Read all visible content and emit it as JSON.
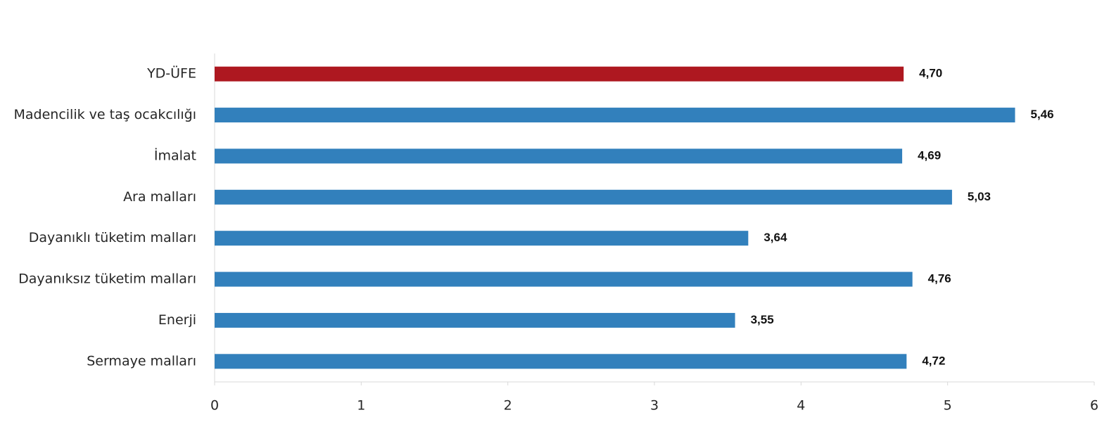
{
  "chart_data": {
    "type": "bar",
    "orientation": "horizontal",
    "categories": [
      "YD-ÜFE",
      "Madencilik ve taş ocakcılığı",
      "İmalat",
      "Ara malları",
      "Dayanıklı tüketim malları",
      "Dayanıksız tüketim malları",
      "Enerji",
      "Sermaye malları"
    ],
    "values": [
      4.7,
      5.46,
      4.69,
      5.03,
      3.64,
      4.76,
      3.55,
      4.72
    ],
    "value_labels": [
      "4,70",
      "5,46",
      "4,69",
      "5,03",
      "3,64",
      "4,76",
      "3,55",
      "4,72"
    ],
    "colors": [
      "#ae1820",
      "#3280bc",
      "#3280bc",
      "#3280bc",
      "#3280bc",
      "#3280bc",
      "#3280bc",
      "#3280bc"
    ],
    "xlim": [
      0,
      6
    ],
    "xticks": [
      0,
      1,
      2,
      3,
      4,
      5,
      6
    ],
    "grid": false
  }
}
